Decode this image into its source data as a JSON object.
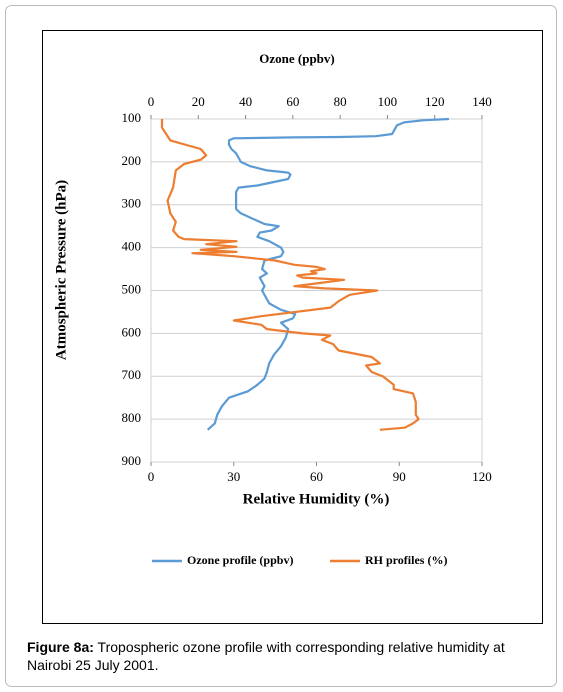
{
  "chart_data": {
    "type": "line",
    "xlabel": "Ozone (ppbv)",
    "x2label": "Relative Humidity (%)",
    "ylabel": "Atmospheric Pressure (hPa)",
    "xlim": [
      0,
      140
    ],
    "xticks": [
      0,
      20,
      40,
      60,
      80,
      100,
      120,
      140
    ],
    "x2lim": [
      0,
      120
    ],
    "x2ticks": [
      0,
      30,
      60,
      90,
      120
    ],
    "ylim": [
      100,
      900
    ],
    "yticks": [
      100,
      200,
      300,
      400,
      500,
      600,
      700,
      800,
      900
    ],
    "y_inverted": true,
    "grid": true,
    "legend": "bottom",
    "series": [
      {
        "name": "Ozone profile (ppbv)",
        "color": "#5b9bd5",
        "axis": "x",
        "pressure": [
          100,
          103,
          108,
          115,
          125,
          135,
          140,
          142,
          143,
          145,
          150,
          160,
          170,
          180,
          190,
          200,
          210,
          220,
          225,
          230,
          240,
          255,
          260,
          270,
          290,
          310,
          320,
          335,
          345,
          350,
          360,
          365,
          375,
          385,
          400,
          410,
          420,
          430,
          450,
          460,
          470,
          490,
          500,
          530,
          545,
          555,
          565,
          575,
          590,
          610,
          630,
          650,
          670,
          690,
          705,
          720,
          735,
          750,
          770,
          790,
          810,
          825
        ],
        "values": [
          126,
          115,
          107,
          104,
          103,
          102,
          95,
          80,
          60,
          35,
          33,
          33,
          34,
          36,
          37,
          38,
          42,
          49,
          58,
          59,
          58,
          45,
          37,
          36,
          36,
          36,
          38,
          44,
          48,
          54,
          51,
          46,
          45,
          50,
          55,
          56,
          55,
          48,
          47,
          49,
          46,
          48,
          47,
          50,
          55,
          61,
          60,
          55,
          58,
          57,
          55,
          52,
          50,
          49,
          48,
          45,
          41,
          33,
          30,
          28,
          27,
          24
        ]
      },
      {
        "name": "RH profiles (%)",
        "color": "#ed7d31",
        "axis": "x2",
        "pressure": [
          100,
          120,
          150,
          170,
          185,
          195,
          205,
          220,
          260,
          290,
          320,
          340,
          360,
          375,
          380,
          385,
          392,
          398,
          405,
          410,
          413,
          415,
          420,
          430,
          440,
          445,
          450,
          455,
          460,
          465,
          470,
          475,
          485,
          490,
          495,
          500,
          510,
          525,
          540,
          560,
          570,
          580,
          590,
          600,
          605,
          615,
          625,
          640,
          655,
          670,
          675,
          690,
          700,
          710,
          720,
          730,
          740,
          760,
          790,
          800,
          810,
          820,
          825
        ],
        "values": [
          4,
          4,
          7,
          18,
          20,
          18,
          12,
          9,
          8,
          6,
          7,
          9,
          8,
          10,
          12,
          31,
          20,
          31,
          18,
          31,
          15,
          20,
          30,
          45,
          52,
          60,
          63,
          58,
          60,
          53,
          55,
          70,
          58,
          52,
          63,
          82,
          72,
          68,
          65,
          40,
          30,
          40,
          42,
          55,
          65,
          62,
          66,
          68,
          80,
          83,
          78,
          80,
          84,
          86,
          88,
          88,
          95,
          96,
          96,
          97,
          95,
          92,
          83
        ]
      }
    ]
  },
  "caption": {
    "label": "Figure 8a:",
    "text": "Tropospheric ozone profile with corresponding relative humidity at Nairobi 25 July 2001."
  }
}
